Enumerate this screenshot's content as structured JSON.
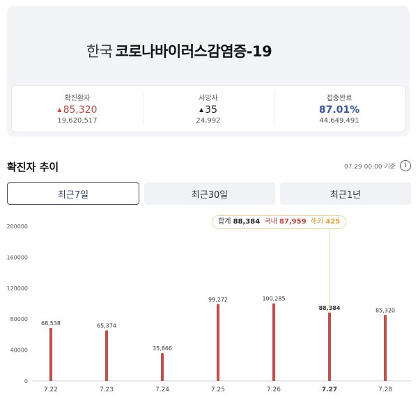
{
  "header": {
    "country": "한국",
    "disease": "코로나바이러스감염증-19"
  },
  "stats": [
    {
      "label": "확진환자",
      "arrow": "▲",
      "value": "85,320",
      "total": "19,620,517",
      "tone": "red"
    },
    {
      "label": "사망자",
      "arrow": "▲",
      "value": "35",
      "total": "24,992",
      "tone": "dark"
    },
    {
      "label": "접종완료",
      "arrow": "",
      "value": "87.01%",
      "total": "44,649,491",
      "tone": "blue"
    }
  ],
  "trend": {
    "title": "확진자 추이",
    "timestamp": "07.29 00:00 기준",
    "info_icon": "info-icon",
    "tabs": [
      {
        "label": "최근7일",
        "active": true
      },
      {
        "label": "최근30일",
        "active": false
      },
      {
        "label": "최근1년",
        "active": false
      }
    ]
  },
  "tooltip": {
    "total_label": "합계",
    "total": "88,384",
    "domestic_label": "국내",
    "domestic": "87,959",
    "overseas_label": "해외",
    "overseas": "425"
  },
  "chart_data": {
    "type": "bar",
    "categories": [
      "7.22",
      "7.23",
      "7.24",
      "7.25",
      "7.26",
      "7.27",
      "7.28"
    ],
    "values": [
      68538,
      65374,
      35866,
      99272,
      100285,
      88384,
      85320
    ],
    "value_labels": [
      "68,538",
      "65,374",
      "35,866",
      "99,272",
      "100,285",
      "88,384",
      "85,320"
    ],
    "yticks": [
      0,
      40000,
      80000,
      120000,
      160000,
      200000
    ],
    "ylim": [
      0,
      200000
    ],
    "highlight_index": 5,
    "bar_color": "#cf4a44",
    "grid": false
  }
}
